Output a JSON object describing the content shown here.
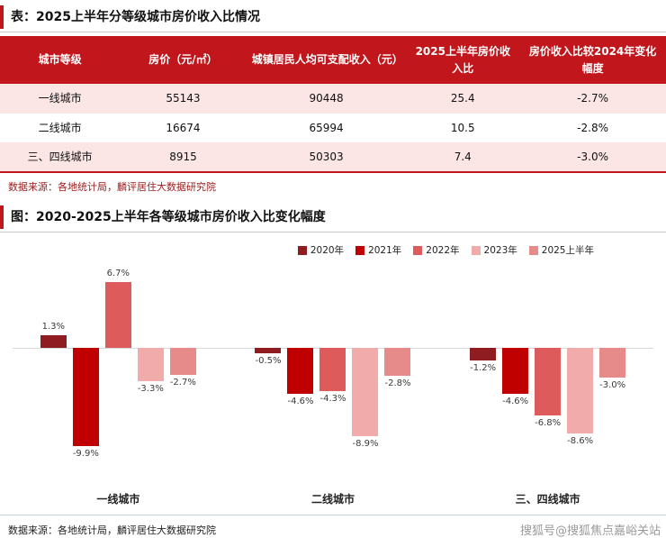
{
  "accent_color": "#c0161c",
  "table_section": {
    "title": "表：2025上半年分等级城市房价收入比情况",
    "headers": [
      "城市等级",
      "房价（元/㎡）",
      "城镇居民人均可支配收入（元）",
      "2025上半年房价收入比",
      "房价收入比较2024年变化幅度"
    ],
    "rows": [
      [
        "一线城市",
        "55143",
        "90448",
        "25.4",
        "-2.7%"
      ],
      [
        "二线城市",
        "16674",
        "65994",
        "10.5",
        "-2.8%"
      ],
      [
        "三、四线城市",
        "8915",
        "50303",
        "7.4",
        "-3.0%"
      ]
    ],
    "source": "数据来源：各地统计局，麟评居住大数据研究院"
  },
  "chart_section": {
    "title": "图：2020-2025上半年各等级城市房价收入比变化幅度",
    "source": "数据来源：各地统计局，麟评居住大数据研究院"
  },
  "chart_data": {
    "type": "bar",
    "title": "2020-2025上半年各等级城市房价收入比变化幅度",
    "categories": [
      "一线城市",
      "二线城市",
      "三、四线城市"
    ],
    "series": [
      {
        "name": "2020年",
        "color": "#8e1c21",
        "values": [
          1.3,
          -0.5,
          -1.2
        ]
      },
      {
        "name": "2021年",
        "color": "#c00000",
        "values": [
          -9.9,
          -4.6,
          -4.6
        ]
      },
      {
        "name": "2022年",
        "color": "#dd5b5b",
        "values": [
          6.7,
          -4.3,
          -6.8
        ]
      },
      {
        "name": "2023年",
        "color": "#f2abab",
        "values": [
          -3.3,
          -8.9,
          -8.6
        ]
      },
      {
        "name": "2025上半年",
        "color": "#e78a8a",
        "values": [
          -2.7,
          -2.8,
          -3.0
        ]
      }
    ],
    "value_suffix": "%",
    "ylim": [
      -11,
      8
    ],
    "grid": false,
    "legend_position": "top"
  },
  "footer": {
    "watermark": "搜狐号@搜狐焦点嘉峪关站"
  }
}
